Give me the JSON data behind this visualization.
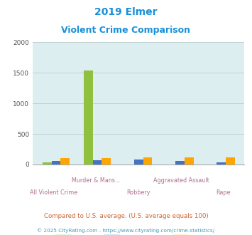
{
  "title_line1": "2019 Elmer",
  "title_line2": "Violent Crime Comparison",
  "categories": [
    "All Violent Crime",
    "Murder & Mans...",
    "Robbery",
    "Aggravated Assault",
    "Rape"
  ],
  "elmer": [
    30,
    1535,
    0,
    0,
    0
  ],
  "new_jersey": [
    62,
    65,
    85,
    55,
    40
  ],
  "national": [
    110,
    110,
    115,
    115,
    115
  ],
  "elmer_color": "#90c040",
  "nj_color": "#4472c4",
  "national_color": "#ffa500",
  "bg_color": "#ddeef0",
  "title_color": "#1890d8",
  "axis_label_color": "#b07090",
  "ylabel_max": 2000,
  "yticks": [
    0,
    500,
    1000,
    1500,
    2000
  ],
  "footnote1": "Compared to U.S. average. (U.S. average equals 100)",
  "footnote2": "© 2025 CityRating.com - https://www.cityrating.com/crime-statistics/",
  "footnote1_color": "#cc6633",
  "footnote2_color": "#4499bb",
  "bar_width": 0.22
}
